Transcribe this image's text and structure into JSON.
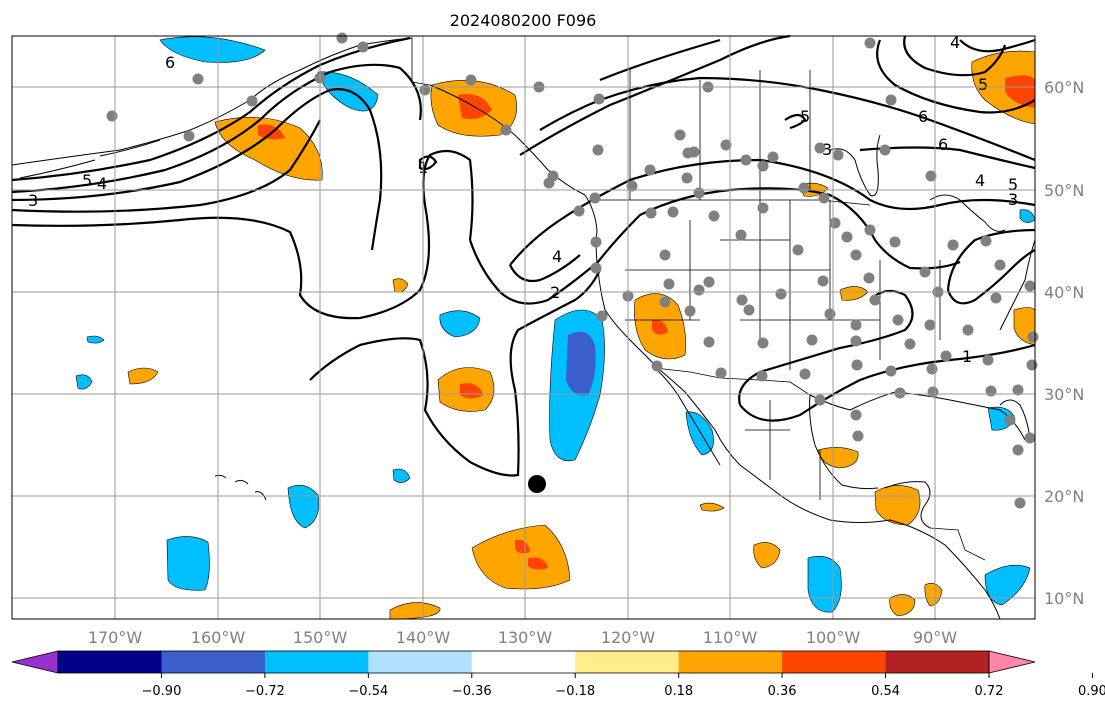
{
  "title": "2024080200 F096",
  "longitude_labels": [
    "170°W",
    "160°W",
    "150°W",
    "140°W",
    "130°W",
    "120°W",
    "110°W",
    "100°W",
    "90°W"
  ],
  "latitude_labels": [
    "60°N",
    "50°N",
    "40°N",
    "30°N",
    "20°N",
    "10°N"
  ],
  "contour_labels": [
    "6",
    "5",
    "4",
    "3",
    "1",
    "4",
    "2",
    "6",
    "6",
    "4",
    "5",
    "3",
    "1",
    "5",
    "4",
    "5",
    "3"
  ],
  "colorbar": {
    "ticks": [
      "−0.90",
      "−0.72",
      "−0.54",
      "−0.36",
      "−0.18",
      "0.18",
      "0.36",
      "0.54",
      "0.72",
      "0.90"
    ],
    "colors": [
      "#9932cc",
      "#00008b",
      "#3a5fcd",
      "#00bfff",
      "#b0e2ff",
      "#ffffff",
      "#ffec8b",
      "#ffa500",
      "#ff4500",
      "#b22222",
      "#ff88aa"
    ],
    "extend": "both"
  },
  "legend_colors": {
    "neg_light": "#00bfff",
    "neg_mid": "#3a5fcd",
    "pos_light": "#ffa500",
    "pos_mid": "#ff4500"
  },
  "marker": {
    "name": "tropical-cyclone-position",
    "color": "#000000"
  }
}
